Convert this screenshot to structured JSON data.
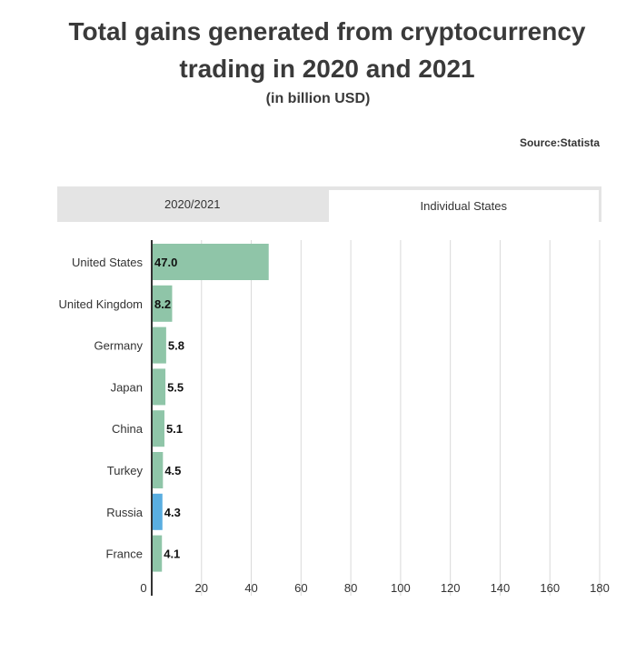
{
  "header": {
    "title_line1": "Total gains generated from cryptocurrency",
    "title_line2": "trading in 2020 and 2021",
    "subtitle": "(in billion USD)",
    "source": "Source:Statista"
  },
  "tabs": [
    {
      "label": "2020/2021",
      "active": false
    },
    {
      "label": "Individual States",
      "active": true
    }
  ],
  "colors": {
    "bar": "#8fc5a8",
    "highlight": "#5aaee0",
    "grid": "#d9d9d9",
    "axis": "#333333"
  },
  "chart_data": {
    "type": "bar",
    "orientation": "horizontal",
    "categories": [
      "United States",
      "United Kingdom",
      "Germany",
      "Japan",
      "China",
      "Turkey",
      "Russia",
      "France"
    ],
    "values": [
      47.0,
      8.2,
      5.8,
      5.5,
      5.1,
      4.5,
      4.3,
      4.1
    ],
    "value_labels": [
      "47.0",
      "8.2",
      "5.8",
      "5.5",
      "5.1",
      "4.5",
      "4.3",
      "4.1"
    ],
    "highlight_category": "Russia",
    "xlim": [
      0,
      180
    ],
    "xticks": [
      0,
      20,
      40,
      60,
      80,
      100,
      120,
      140,
      160,
      180
    ],
    "grid": true
  }
}
